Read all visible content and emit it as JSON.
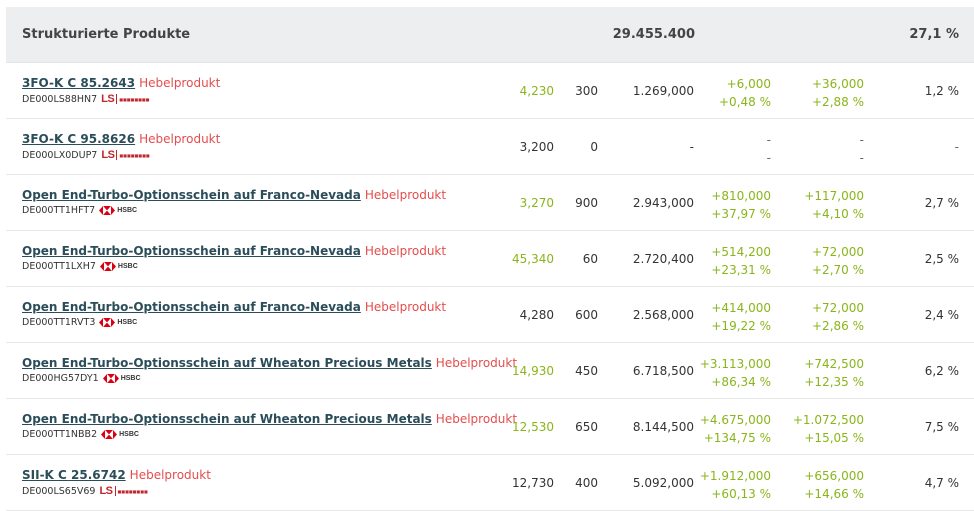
{
  "header": {
    "title": "Strukturierte Produkte",
    "total": "29.455.400",
    "share": "27,1 %"
  },
  "rows": [
    {
      "name": "3FO-K C 85.2643",
      "tag": "Hebelprodukt",
      "isin": "DE000LS88HN7",
      "issuer": "LS",
      "price": "4,230",
      "price_green": true,
      "qty": "300",
      "value": "1.269,000",
      "chg_abs": "+6,000",
      "chg_pct": "+0,48 %",
      "chg2_abs": "+36,000",
      "chg2_pct": "+2,88 %",
      "share": "1,2 %"
    },
    {
      "name": "3FO-K C 95.8626",
      "tag": "Hebelprodukt",
      "isin": "DE000LX0DUP7",
      "issuer": "LS",
      "price": "3,200",
      "price_green": false,
      "qty": "0",
      "value": "-",
      "chg_abs": "-",
      "chg_pct": "-",
      "chg2_abs": "-",
      "chg2_pct": "-",
      "share": "-"
    },
    {
      "name": "Open End-Turbo-Optionsschein auf Franco-Nevada",
      "tag": "Hebelprodukt",
      "isin": "DE000TT1HFT7",
      "issuer": "HSBC",
      "price": "3,270",
      "price_green": true,
      "qty": "900",
      "value": "2.943,000",
      "chg_abs": "+810,000",
      "chg_pct": "+37,97 %",
      "chg2_abs": "+117,000",
      "chg2_pct": "+4,10 %",
      "share": "2,7 %"
    },
    {
      "name": "Open End-Turbo-Optionsschein auf Franco-Nevada",
      "tag": "Hebelprodukt",
      "isin": "DE000TT1LXH7",
      "issuer": "HSBC",
      "price": "45,340",
      "price_green": true,
      "qty": "60",
      "value": "2.720,400",
      "chg_abs": "+514,200",
      "chg_pct": "+23,31 %",
      "chg2_abs": "+72,000",
      "chg2_pct": "+2,70 %",
      "share": "2,5 %"
    },
    {
      "name": "Open End-Turbo-Optionsschein auf Franco-Nevada",
      "tag": "Hebelprodukt",
      "isin": "DE000TT1RVT3",
      "issuer": "HSBC",
      "price": "4,280",
      "price_green": false,
      "qty": "600",
      "value": "2.568,000",
      "chg_abs": "+414,000",
      "chg_pct": "+19,22 %",
      "chg2_abs": "+72,000",
      "chg2_pct": "+2,86 %",
      "share": "2,4 %"
    },
    {
      "name": "Open End-Turbo-Optionsschein auf Wheaton Precious Metals",
      "tag": "Hebelprodukt",
      "isin": "DE000HG57DY1",
      "issuer": "HSBC",
      "price": "14,930",
      "price_green": true,
      "qty": "450",
      "value": "6.718,500",
      "chg_abs": "+3.113,000",
      "chg_pct": "+86,34 %",
      "chg2_abs": "+742,500",
      "chg2_pct": "+12,35 %",
      "share": "6,2 %"
    },
    {
      "name": "Open End-Turbo-Optionsschein auf Wheaton Precious Metals",
      "tag": "Hebelprodukt",
      "isin": "DE000TT1NBB2",
      "issuer": "HSBC",
      "price": "12,530",
      "price_green": true,
      "qty": "650",
      "value": "8.144,500",
      "chg_abs": "+4.675,000",
      "chg_pct": "+134,75 %",
      "chg2_abs": "+1.072,500",
      "chg2_pct": "+15,05 %",
      "share": "7,5 %"
    },
    {
      "name": "SII-K C 25.6742",
      "tag": "Hebelprodukt",
      "isin": "DE000LS65V69",
      "issuer": "LS",
      "price": "12,730",
      "price_green": false,
      "qty": "400",
      "value": "5.092,000",
      "chg_abs": "+1.912,000",
      "chg_pct": "+60,13 %",
      "chg2_abs": "+656,000",
      "chg2_pct": "+14,66 %",
      "share": "4,7 %"
    }
  ],
  "colors": {
    "accent_green": "#8ab51a",
    "lever_red": "#e44d4d",
    "link": "#2b4d59"
  }
}
